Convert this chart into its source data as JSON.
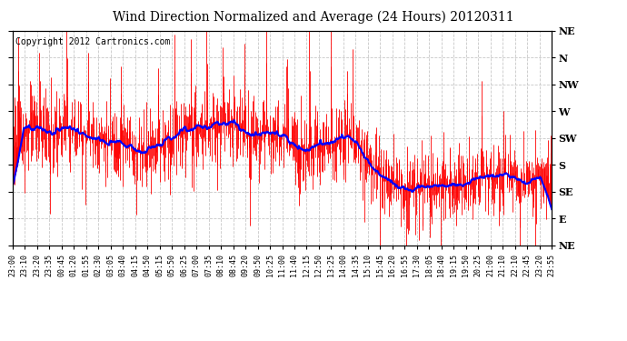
{
  "title": "Wind Direction Normalized and Average (24 Hours) 20120311",
  "copyright": "Copyright 2012 Cartronics.com",
  "y_labels": [
    "NE",
    "N",
    "NW",
    "W",
    "SW",
    "S",
    "SE",
    "E",
    "NE"
  ],
  "y_ticks": [
    8,
    7,
    6,
    5,
    4,
    3,
    2,
    1,
    0
  ],
  "x_labels": [
    "23:00",
    "23:10",
    "23:20",
    "23:35",
    "00:45",
    "01:20",
    "01:55",
    "02:30",
    "03:05",
    "03:40",
    "04:15",
    "04:50",
    "05:15",
    "05:50",
    "06:25",
    "07:00",
    "07:35",
    "08:10",
    "08:45",
    "09:20",
    "09:50",
    "10:25",
    "11:00",
    "11:40",
    "12:15",
    "12:50",
    "13:25",
    "14:00",
    "14:35",
    "15:10",
    "15:45",
    "16:20",
    "16:55",
    "17:30",
    "18:05",
    "18:40",
    "19:15",
    "19:50",
    "20:25",
    "21:00",
    "21:10",
    "22:10",
    "22:45",
    "23:20",
    "23:55"
  ],
  "background_color": "#ffffff",
  "grid_color": "#c8c8c8",
  "raw_color": "#ff0000",
  "avg_color": "#0000ff",
  "title_fontsize": 10,
  "copyright_fontsize": 7,
  "figwidth": 6.9,
  "figheight": 3.75,
  "dpi": 100
}
